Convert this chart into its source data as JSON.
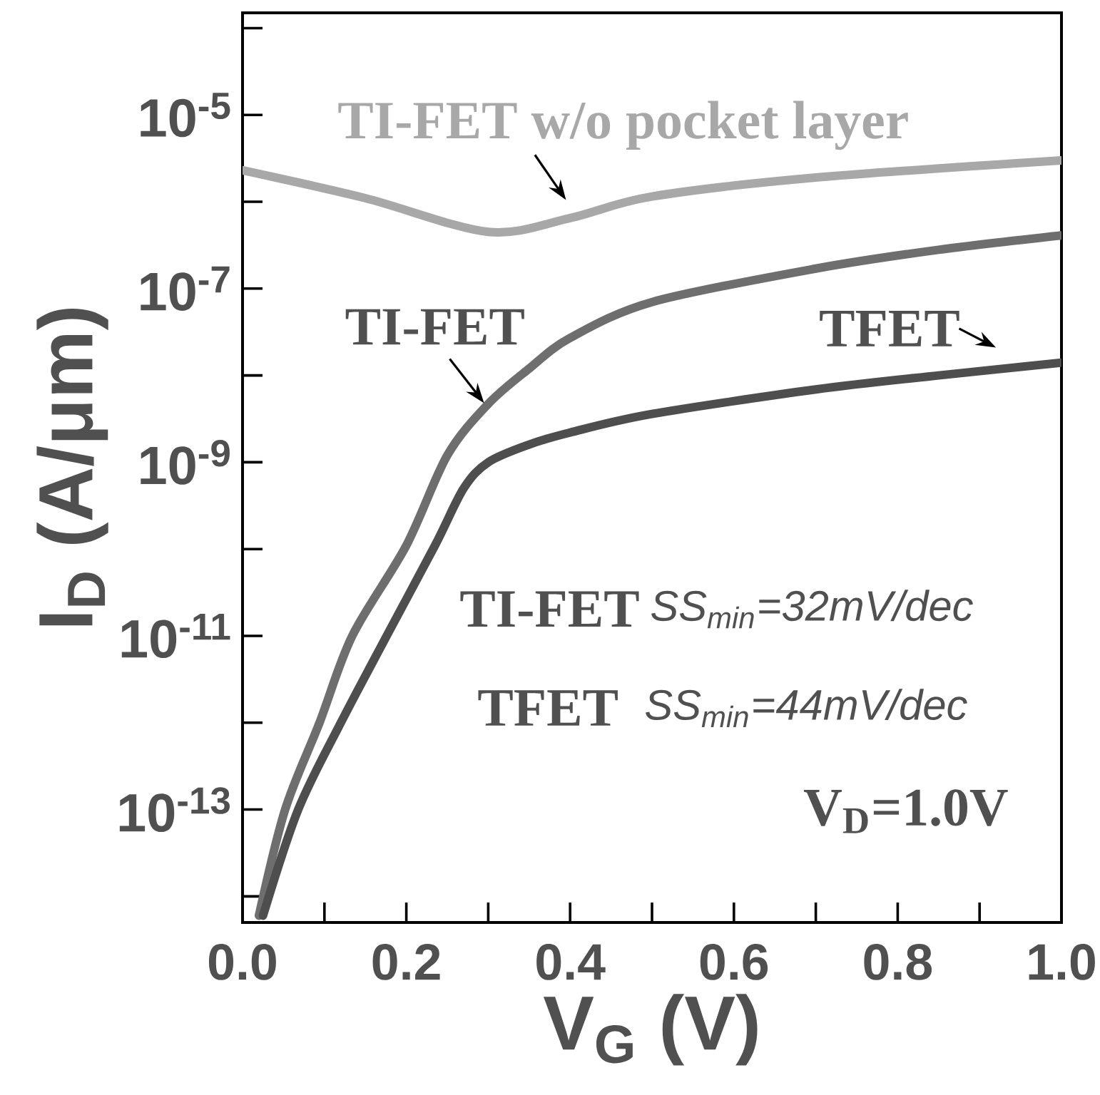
{
  "chart_data": {
    "type": "line",
    "xlabel": "V$_{G}$ (V)",
    "ylabel": "I$_{D}$ (A/μm)",
    "log": true,
    "xlim": [
      0,
      1
    ],
    "ylim": [
      5e-15,
      0.00015
    ],
    "xticks": [
      {
        "value": 0,
        "label": "0.0"
      },
      {
        "value": 0.1,
        "label": null
      },
      {
        "value": 0.2,
        "label": "0.2"
      },
      {
        "value": 0.3,
        "label": null
      },
      {
        "value": 0.4,
        "label": "0.4"
      },
      {
        "value": 0.5,
        "label": null
      },
      {
        "value": 0.6,
        "label": "0.6"
      },
      {
        "value": 0.7,
        "label": null
      },
      {
        "value": 0.8,
        "label": "0.8"
      },
      {
        "value": 0.9,
        "label": null
      },
      {
        "value": 1,
        "label": "1.0"
      }
    ],
    "yticks": [
      {
        "value": 1e-14,
        "label": null
      },
      {
        "value": 1e-13,
        "label": "10$^{-13}$"
      },
      {
        "value": 1e-12,
        "label": null
      },
      {
        "value": 1e-11,
        "label": "10$^{-11}$"
      },
      {
        "value": 1e-10,
        "label": null
      },
      {
        "value": 1e-09,
        "label": "10$^{-9}$"
      },
      {
        "value": 1e-08,
        "label": null
      },
      {
        "value": 1e-07,
        "label": "10$^{-7}$"
      },
      {
        "value": 1e-06,
        "label": null
      },
      {
        "value": 1e-05,
        "label": "10$^{-5}$"
      },
      {
        "value": 0.0001,
        "label": null
      }
    ],
    "series": [
      {
        "color": "#a8a8a8",
        "x": [
          0,
          0.15,
          0.3,
          0.4,
          0.5,
          0.7,
          1.0
        ],
        "values": [
          2.3e-06,
          1.1e-06,
          4.5e-07,
          6.5e-07,
          1.15e-06,
          1.9e-06,
          3e-06
        ]
      },
      {
        "color": "#6e6e6e",
        "x": [
          0.02,
          0.052,
          0.094,
          0.134,
          0.2,
          0.25,
          0.3,
          0.35,
          0.4,
          0.5,
          0.7,
          0.85,
          1.0
        ],
        "values": [
          6e-15,
          1e-13,
          1e-12,
          1e-11,
          1.1e-10,
          1.2e-09,
          4.7e-09,
          1.2e-08,
          2.7e-08,
          7e-08,
          1.7e-07,
          2.8e-07,
          4.1e-07
        ]
      },
      {
        "color": "#4e4e4e",
        "x": [
          0.025,
          0.068,
          0.12,
          0.176,
          0.235,
          0.27,
          0.3,
          0.35,
          0.4,
          0.5,
          0.7,
          0.85,
          1.0
        ],
        "values": [
          6e-15,
          1e-13,
          1e-12,
          1e-11,
          1.1e-10,
          5e-10,
          1e-09,
          1.6e-09,
          2.2e-09,
          3.6e-09,
          6.9e-09,
          1e-08,
          1.4e-08
        ]
      }
    ],
    "annotations": [
      "TI-FET w/o pocket layer",
      {
        "text": "TI-FET",
        "x": 0.295,
        "y": 4.8e-09
      },
      "TFET",
      "TI-FET",
      "SS$_{min}$=32mV/dec",
      "TFET",
      "SS$_{min}$=44mV/dec",
      "V$_{D}$=1.0V"
    ]
  }
}
